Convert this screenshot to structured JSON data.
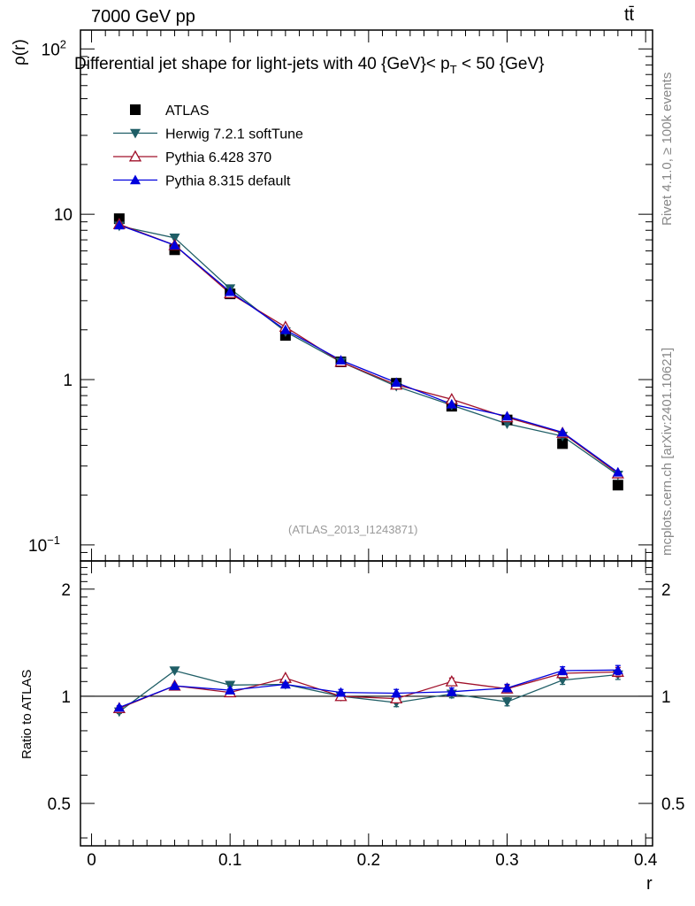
{
  "header": {
    "energy_label": "7000 GeV pp",
    "process_label": "tt̄",
    "side_label_top": "Rivet 4.1.0, ≥ 100k events",
    "side_label_bottom": "mcplots.cern.ch [arXiv:2401.10621]"
  },
  "colors": {
    "atlas": "#000000",
    "herwig": "#1f5e66",
    "pythia6": "#a0102a",
    "pythia8": "#0000dd"
  },
  "chart_data": [
    {
      "type": "line",
      "title": "Differential jet shape for light-jets with 40 {GeV}< p_T < 50 {GeV}",
      "title_main": "Differential jet shape for light-jets with 40 {GeV}< p",
      "title_sub": "T",
      "title_tail": " < 50 {GeV}",
      "watermark": "(ATLAS_2013_I1243871)",
      "ylabel": "ρ(r)",
      "xlabel": "",
      "yscale": "log",
      "ylim": [
        0.08,
        130
      ],
      "xlim": [
        -0.008,
        0.405
      ],
      "yticks": [
        {
          "value": 100,
          "label": "10",
          "sup": "2"
        },
        {
          "value": 10,
          "label": "10",
          "sup": ""
        },
        {
          "value": 1,
          "label": "1",
          "sup": ""
        },
        {
          "value": 0.1,
          "label": "10",
          "sup": "−1"
        }
      ],
      "legend": {
        "position": "top-left"
      },
      "x": [
        0.02,
        0.06,
        0.1,
        0.14,
        0.18,
        0.22,
        0.26,
        0.3,
        0.34,
        0.38
      ],
      "series": [
        {
          "name": "ATLAS",
          "key": "atlas",
          "marker": "square",
          "line": false,
          "values": [
            9.4,
            6.1,
            3.3,
            1.85,
            1.28,
            0.95,
            0.69,
            0.57,
            0.41,
            0.23
          ]
        },
        {
          "name": "Herwig 7.2.1 softTune",
          "key": "herwig",
          "marker": "triangle-down",
          "line": true,
          "values": [
            8.5,
            7.2,
            3.55,
            1.95,
            1.28,
            0.91,
            0.7,
            0.54,
            0.455,
            0.265
          ]
        },
        {
          "name": "Pythia 6.428 370",
          "key": "pythia6",
          "marker": "triangle-up-open",
          "line": true,
          "values": [
            8.7,
            6.5,
            3.32,
            2.08,
            1.28,
            0.93,
            0.76,
            0.59,
            0.475,
            0.27
          ]
        },
        {
          "name": "Pythia 8.315 default",
          "key": "pythia8",
          "marker": "triangle-up",
          "line": true,
          "values": [
            8.6,
            6.5,
            3.4,
            2.0,
            1.31,
            0.96,
            0.71,
            0.6,
            0.48,
            0.275
          ]
        }
      ]
    },
    {
      "type": "line",
      "title": "",
      "ylabel": "Ratio to ATLAS",
      "xlabel": "r",
      "yscale": "log",
      "ylim": [
        0.38,
        2.4
      ],
      "xlim": [
        -0.008,
        0.405
      ],
      "yticks": [
        {
          "value": 2,
          "label": "2"
        },
        {
          "value": 1,
          "label": "1"
        },
        {
          "value": 0.5,
          "label": "0.5"
        }
      ],
      "xticks": [
        {
          "value": 0,
          "label": "0"
        },
        {
          "value": 0.1,
          "label": "0.1"
        },
        {
          "value": 0.2,
          "label": "0.2"
        },
        {
          "value": 0.3,
          "label": "0.3"
        },
        {
          "value": 0.4,
          "label": "0.4"
        }
      ],
      "reference": 1,
      "x": [
        0.02,
        0.06,
        0.1,
        0.14,
        0.18,
        0.22,
        0.26,
        0.3,
        0.34,
        0.38
      ],
      "series": [
        {
          "name": "Herwig 7.2.1 softTune",
          "key": "herwig",
          "marker": "triangle-down",
          "values": [
            0.905,
            1.18,
            1.075,
            1.08,
            1.0,
            0.96,
            1.015,
            0.965,
            1.11,
            1.15
          ],
          "errors": [
            0.01,
            0.01,
            0.01,
            0.01,
            0.02,
            0.025,
            0.025,
            0.025,
            0.03,
            0.035
          ]
        },
        {
          "name": "Pythia 6.428 370",
          "key": "pythia6",
          "marker": "triangle-up-open",
          "values": [
            0.925,
            1.07,
            1.025,
            1.125,
            1.0,
            0.985,
            1.1,
            1.05,
            1.16,
            1.17
          ],
          "errors": [
            0.01,
            0.01,
            0.01,
            0.01,
            0.02,
            0.025,
            0.025,
            0.025,
            0.03,
            0.035
          ]
        },
        {
          "name": "Pythia 8.315 default",
          "key": "pythia8",
          "marker": "triangle-up",
          "values": [
            0.93,
            1.07,
            1.04,
            1.08,
            1.025,
            1.02,
            1.03,
            1.055,
            1.18,
            1.185
          ],
          "errors": [
            0.01,
            0.01,
            0.01,
            0.01,
            0.02,
            0.025,
            0.025,
            0.025,
            0.03,
            0.035
          ]
        }
      ]
    }
  ]
}
